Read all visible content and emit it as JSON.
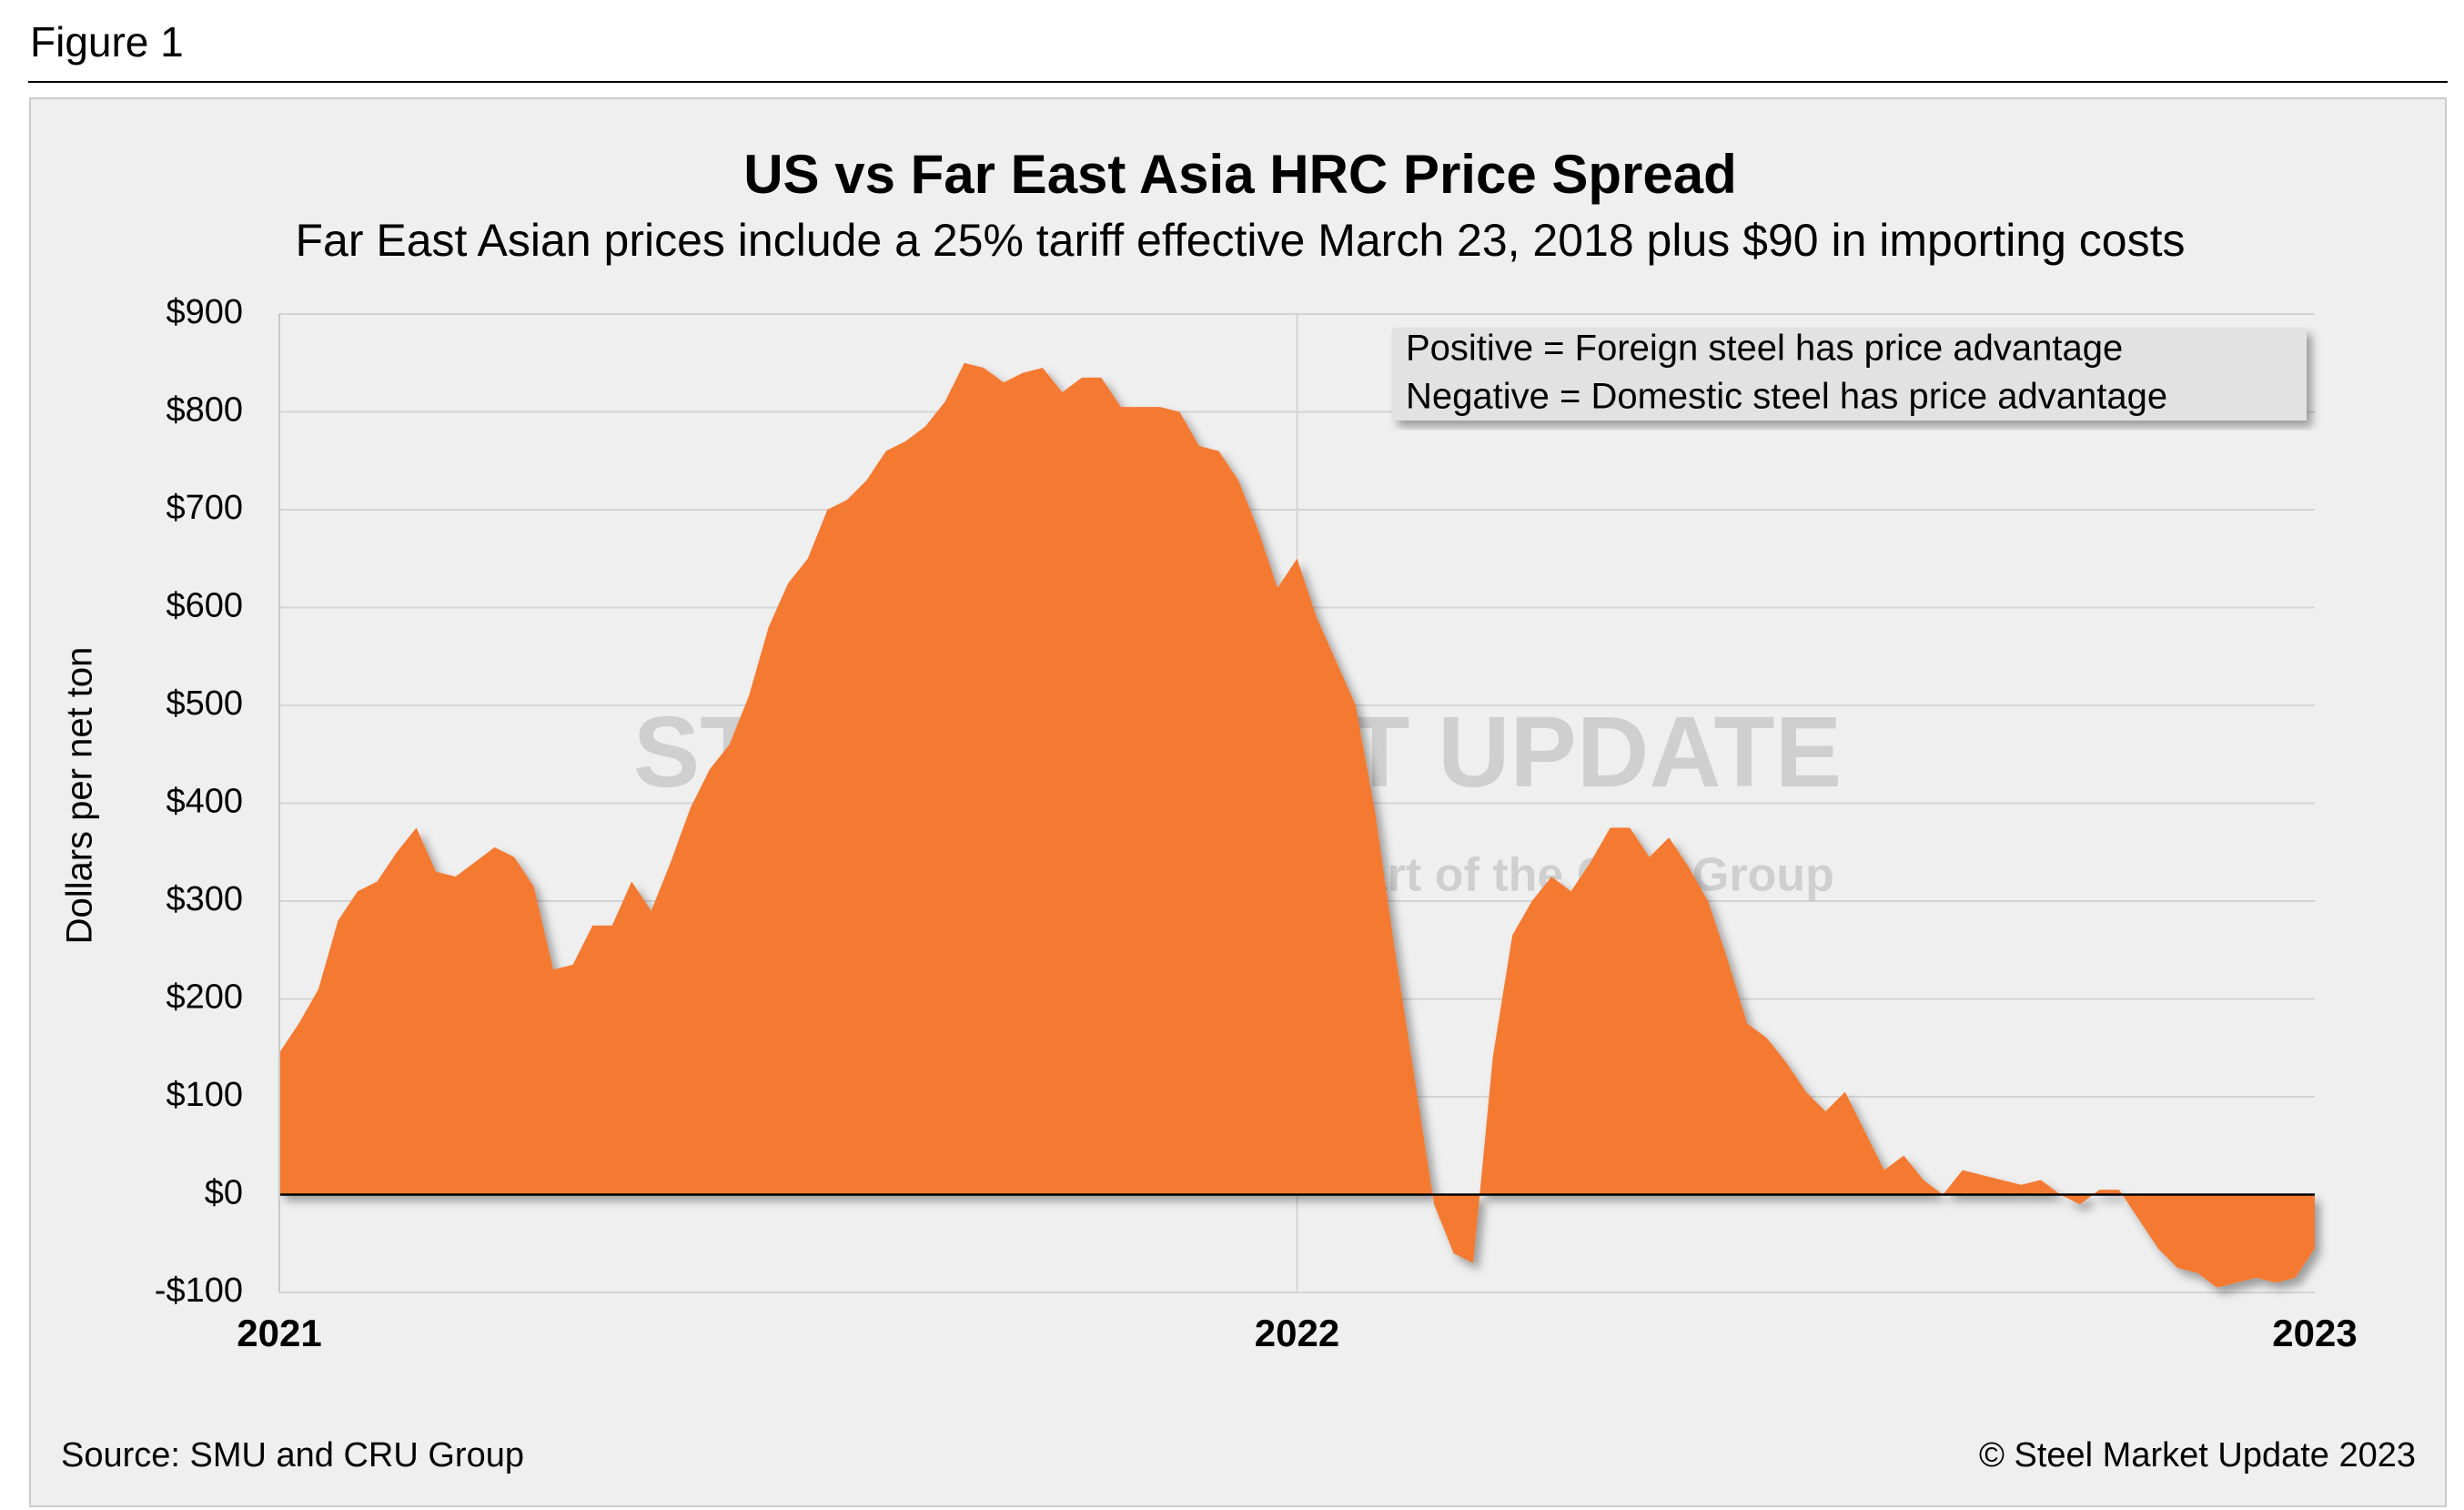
{
  "figure_label": "Figure 1",
  "chart_data": {
    "type": "area",
    "title": "US vs Far East Asia HRC Price Spread",
    "subtitle": "Far East Asian prices include a 25% tariff effective March 23, 2018 plus $90 in importing costs",
    "ylabel": "Dollars per net ton",
    "annotation": [
      "Positive = Foreign steel has price advantage",
      "Negative = Domestic steel has price advantage"
    ],
    "watermark": {
      "brand": "STEEL MARKET UPDATE",
      "tagline": "part of the CRU Group"
    },
    "source": "Source: SMU and CRU Group",
    "copyright": "© Steel Market Update 2023",
    "color": "#f47a30",
    "grid": true,
    "categories": [
      "2021",
      null,
      null,
      null,
      null,
      null,
      null,
      null,
      null,
      null,
      null,
      null,
      null,
      null,
      null,
      null,
      null,
      null,
      null,
      null,
      null,
      null,
      null,
      null,
      null,
      null,
      null,
      null,
      null,
      null,
      null,
      null,
      null,
      null,
      null,
      null,
      null,
      null,
      null,
      null,
      null,
      null,
      null,
      null,
      null,
      null,
      null,
      null,
      null,
      null,
      null,
      null,
      "2022",
      null,
      null,
      null,
      null,
      null,
      null,
      null,
      null,
      null,
      null,
      null,
      null,
      null,
      null,
      null,
      null,
      null,
      null,
      null,
      null,
      null,
      null,
      null,
      null,
      null,
      null,
      null,
      null,
      null,
      null,
      null,
      null,
      null,
      null,
      null,
      null,
      null,
      null,
      null,
      null,
      null,
      null,
      null,
      null,
      null,
      null,
      null,
      null,
      null,
      null,
      null,
      "2023"
    ],
    "values": [
      145,
      175,
      210,
      280,
      310,
      320,
      350,
      375,
      330,
      325,
      340,
      355,
      345,
      315,
      230,
      235,
      275,
      275,
      320,
      290,
      340,
      395,
      435,
      460,
      510,
      580,
      625,
      650,
      700,
      710,
      730,
      760,
      770,
      785,
      810,
      850,
      845,
      830,
      840,
      845,
      820,
      835,
      835,
      805,
      805,
      805,
      800,
      765,
      760,
      730,
      680,
      620,
      650,
      590,
      545,
      500,
      390,
      250,
      120,
      -10,
      -60,
      -70,
      140,
      265,
      300,
      325,
      310,
      340,
      375,
      375,
      345,
      365,
      335,
      300,
      240,
      175,
      160,
      135,
      105,
      85,
      105,
      65,
      25,
      40,
      15,
      0,
      25,
      20,
      15,
      10,
      15,
      0,
      -10,
      5,
      5,
      -25,
      -55,
      -75,
      -80,
      -95,
      -90,
      -85,
      -90,
      -85,
      -55
    ],
    "ylim": [
      -100,
      900
    ],
    "yticks": [
      {
        "value": -100,
        "label": "-$100"
      },
      {
        "value": 0,
        "label": "$0"
      },
      {
        "value": 100,
        "label": "$100"
      },
      {
        "value": 200,
        "label": "$200"
      },
      {
        "value": 300,
        "label": "$300"
      },
      {
        "value": 400,
        "label": "$400"
      },
      {
        "value": 500,
        "label": "$500"
      },
      {
        "value": 600,
        "label": "$600"
      },
      {
        "value": 700,
        "label": "$700"
      },
      {
        "value": 800,
        "label": "$800"
      },
      {
        "value": 900,
        "label": "$900"
      }
    ]
  }
}
